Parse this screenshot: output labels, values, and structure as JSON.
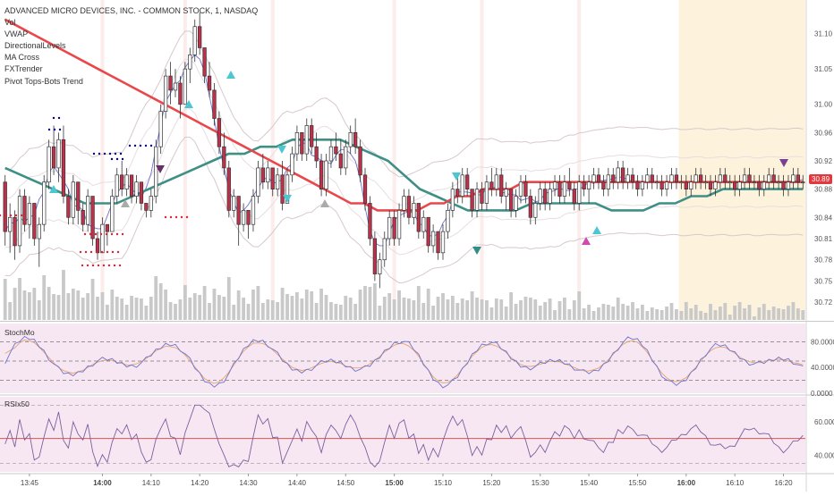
{
  "header": {
    "title": "ADVANCED MICRO DEVICES, INC. - COMMON STOCK, 1, NASDAQ",
    "indicators": [
      "Vol",
      "VWAP",
      "DirectionalLevels",
      "MA Cross",
      "FXTrender",
      "Pivot Tops-Bots Trend"
    ]
  },
  "colors": {
    "background": "#ffffff",
    "up_candle": "#ffffff",
    "down_candle": "#c0304a",
    "ma_slow": "#e9474b",
    "ma_fast": "#3e8f86",
    "vwap_band": "#d7c9cc",
    "vwap_inner": "#6f73cf",
    "highlight_zone": "#fdf2dc",
    "volume": "#c9c9c9",
    "stoch_k": "#6f73cf",
    "stoch_d": "#e7a46a",
    "rsi": "#7f5f9e",
    "rsi_mid": "#d9534f",
    "osc_bg": "#f6e7f2"
  },
  "chart_data": [
    {
      "type": "candlestick",
      "title": "ADVANCED MICRO DEVICES, INC. - COMMON STOCK, 1, NASDAQ",
      "ylim": [
        30.7,
        31.14
      ],
      "price_ticks": [
        "31.10",
        "31.05",
        "31.00",
        "30.96",
        "30.92",
        "30.88",
        "30.84",
        "30.81",
        "30.78",
        "30.75",
        "30.72"
      ],
      "price_tick_values": [
        31.1,
        31.05,
        31.0,
        30.96,
        30.92,
        30.88,
        30.84,
        30.81,
        30.78,
        30.75,
        30.72
      ],
      "last_price": "30.89",
      "time_labels": [
        "13:45",
        "14:00",
        "14:10",
        "14:20",
        "14:30",
        "14:40",
        "14:50",
        "15:00",
        "15:10",
        "15:20",
        "15:30",
        "15:40",
        "15:50",
        "16:00",
        "16:10",
        "16:20"
      ],
      "time_label_index": [
        5,
        20,
        30,
        40,
        50,
        60,
        70,
        80,
        90,
        100,
        110,
        120,
        130,
        140,
        150,
        160
      ],
      "bold_times": [
        "14:00",
        "15:00",
        "16:00"
      ],
      "candles": [
        [
          30.89,
          30.9,
          30.8,
          30.82
        ],
        [
          30.82,
          30.86,
          30.79,
          30.84
        ],
        [
          30.84,
          30.85,
          30.78,
          30.8
        ],
        [
          30.8,
          30.88,
          30.79,
          30.87
        ],
        [
          30.87,
          30.88,
          30.82,
          30.83
        ],
        [
          30.83,
          30.87,
          30.81,
          30.86
        ],
        [
          30.86,
          30.86,
          30.8,
          30.81
        ],
        [
          30.81,
          30.84,
          30.77,
          30.83
        ],
        [
          30.83,
          30.9,
          30.82,
          30.89
        ],
        [
          30.89,
          30.95,
          30.88,
          30.94
        ],
        [
          30.94,
          30.97,
          30.9,
          30.91
        ],
        [
          30.91,
          30.96,
          30.89,
          30.95
        ],
        [
          30.95,
          30.97,
          30.86,
          30.87
        ],
        [
          30.87,
          30.88,
          30.83,
          30.84
        ],
        [
          30.84,
          30.9,
          30.83,
          30.89
        ],
        [
          30.89,
          30.89,
          30.83,
          30.85
        ],
        [
          30.85,
          30.86,
          30.82,
          30.83
        ],
        [
          30.83,
          30.88,
          30.82,
          30.87
        ],
        [
          30.87,
          30.87,
          30.8,
          30.81
        ],
        [
          30.81,
          30.82,
          30.78,
          30.79
        ],
        [
          30.79,
          30.84,
          30.79,
          30.83
        ],
        [
          30.83,
          30.83,
          30.8,
          30.82
        ],
        [
          30.82,
          30.88,
          30.82,
          30.87
        ],
        [
          30.87,
          30.91,
          30.86,
          30.9
        ],
        [
          30.9,
          30.92,
          30.87,
          30.88
        ],
        [
          30.88,
          30.91,
          30.87,
          30.9
        ],
        [
          30.9,
          30.9,
          30.86,
          30.87
        ],
        [
          30.87,
          30.9,
          30.86,
          30.89
        ],
        [
          30.89,
          30.89,
          30.85,
          30.86
        ],
        [
          30.86,
          30.86,
          30.84,
          30.85
        ],
        [
          30.85,
          30.88,
          30.84,
          30.87
        ],
        [
          30.87,
          30.95,
          30.86,
          30.94
        ],
        [
          30.94,
          31.0,
          30.93,
          30.99
        ],
        [
          30.99,
          31.05,
          30.98,
          31.04
        ],
        [
          31.04,
          31.06,
          31.0,
          31.02
        ],
        [
          31.02,
          31.05,
          31.01,
          31.03
        ],
        [
          31.03,
          31.04,
          30.98,
          31.0
        ],
        [
          31.0,
          31.06,
          31.0,
          31.05
        ],
        [
          31.05,
          31.08,
          31.03,
          31.07
        ],
        [
          31.07,
          31.12,
          31.06,
          31.11
        ],
        [
          31.11,
          31.13,
          31.07,
          31.08
        ],
        [
          31.08,
          31.08,
          31.03,
          31.04
        ],
        [
          31.04,
          31.06,
          31.01,
          31.02
        ],
        [
          31.02,
          31.03,
          30.97,
          30.98
        ],
        [
          30.98,
          30.99,
          30.93,
          30.94
        ],
        [
          30.94,
          30.96,
          30.9,
          30.91
        ],
        [
          30.91,
          30.92,
          30.84,
          30.85
        ],
        [
          30.85,
          30.88,
          30.84,
          30.87
        ],
        [
          30.87,
          30.87,
          30.8,
          30.83
        ],
        [
          30.83,
          30.86,
          30.82,
          30.85
        ],
        [
          30.85,
          30.85,
          30.81,
          30.83
        ],
        [
          30.83,
          30.88,
          30.82,
          30.87
        ],
        [
          30.87,
          30.92,
          30.86,
          30.91
        ],
        [
          30.91,
          30.93,
          30.88,
          30.89
        ],
        [
          30.89,
          30.92,
          30.88,
          30.91
        ],
        [
          30.91,
          30.91,
          30.87,
          30.88
        ],
        [
          30.88,
          30.91,
          30.87,
          30.9
        ],
        [
          30.9,
          30.92,
          30.85,
          30.86
        ],
        [
          30.86,
          30.91,
          30.86,
          30.9
        ],
        [
          30.9,
          30.94,
          30.89,
          30.93
        ],
        [
          30.93,
          30.97,
          30.92,
          30.96
        ],
        [
          30.96,
          30.96,
          30.92,
          30.93
        ],
        [
          30.93,
          30.98,
          30.92,
          30.97
        ],
        [
          30.97,
          30.98,
          30.93,
          30.94
        ],
        [
          30.94,
          30.96,
          30.91,
          30.92
        ],
        [
          30.92,
          30.93,
          30.87,
          30.88
        ],
        [
          30.88,
          30.93,
          30.87,
          30.92
        ],
        [
          30.92,
          30.95,
          30.91,
          30.94
        ],
        [
          30.94,
          30.96,
          30.92,
          30.93
        ],
        [
          30.93,
          30.95,
          30.9,
          30.91
        ],
        [
          30.91,
          30.95,
          30.9,
          30.94
        ],
        [
          30.94,
          30.97,
          30.93,
          30.96
        ],
        [
          30.96,
          30.98,
          30.93,
          30.94
        ],
        [
          30.94,
          30.95,
          30.89,
          30.9
        ],
        [
          30.9,
          30.91,
          30.85,
          30.86
        ],
        [
          30.86,
          30.87,
          30.8,
          30.81
        ],
        [
          30.81,
          30.82,
          30.75,
          30.76
        ],
        [
          30.76,
          30.79,
          30.74,
          30.78
        ],
        [
          30.78,
          30.82,
          30.77,
          30.81
        ],
        [
          30.81,
          30.85,
          30.8,
          30.84
        ],
        [
          30.84,
          30.85,
          30.8,
          30.81
        ],
        [
          30.81,
          30.86,
          30.8,
          30.85
        ],
        [
          30.85,
          30.88,
          30.84,
          30.87
        ],
        [
          30.87,
          30.88,
          30.83,
          30.84
        ],
        [
          30.84,
          30.87,
          30.83,
          30.86
        ],
        [
          30.86,
          30.86,
          30.81,
          30.82
        ],
        [
          30.82,
          30.85,
          30.81,
          30.84
        ],
        [
          30.84,
          30.84,
          30.79,
          30.8
        ],
        [
          30.8,
          30.83,
          30.79,
          30.82
        ],
        [
          30.82,
          30.82,
          30.78,
          30.79
        ],
        [
          30.79,
          30.83,
          30.78,
          30.82
        ],
        [
          30.82,
          30.86,
          30.81,
          30.85
        ],
        [
          30.85,
          30.89,
          30.84,
          30.88
        ],
        [
          30.88,
          30.9,
          30.86,
          30.87
        ],
        [
          30.87,
          30.91,
          30.86,
          30.9
        ],
        [
          30.9,
          30.91,
          30.87,
          30.88
        ],
        [
          30.88,
          30.88,
          30.84,
          30.85
        ],
        [
          30.85,
          30.89,
          30.84,
          30.88
        ],
        [
          30.88,
          30.89,
          30.85,
          30.86
        ],
        [
          30.86,
          30.9,
          30.85,
          30.89
        ],
        [
          30.89,
          30.91,
          30.87,
          30.88
        ],
        [
          30.88,
          30.91,
          30.87,
          30.9
        ],
        [
          30.9,
          30.91,
          30.86,
          30.87
        ],
        [
          30.87,
          30.89,
          30.85,
          30.88
        ],
        [
          30.88,
          30.88,
          30.84,
          30.85
        ],
        [
          30.85,
          30.88,
          30.84,
          30.87
        ],
        [
          30.87,
          30.9,
          30.86,
          30.89
        ],
        [
          30.89,
          30.9,
          30.86,
          30.87
        ],
        [
          30.87,
          30.88,
          30.83,
          30.84
        ],
        [
          30.84,
          30.87,
          30.83,
          30.86
        ],
        [
          30.86,
          30.89,
          30.85,
          30.88
        ],
        [
          30.88,
          30.89,
          30.85,
          30.86
        ],
        [
          30.86,
          30.89,
          30.85,
          30.88
        ],
        [
          30.88,
          30.9,
          30.87,
          30.89
        ],
        [
          30.89,
          30.9,
          30.86,
          30.87
        ],
        [
          30.87,
          30.9,
          30.86,
          30.89
        ],
        [
          30.89,
          30.91,
          30.87,
          30.88
        ],
        [
          30.88,
          30.89,
          30.85,
          30.86
        ],
        [
          30.86,
          30.9,
          30.85,
          30.89
        ],
        [
          30.89,
          30.9,
          30.87,
          30.88
        ],
        [
          30.88,
          30.9,
          30.86,
          30.89
        ],
        [
          30.89,
          30.91,
          30.88,
          30.9
        ],
        [
          30.9,
          30.91,
          30.88,
          30.89
        ],
        [
          30.89,
          30.9,
          30.87,
          30.88
        ],
        [
          30.88,
          30.91,
          30.87,
          30.9
        ],
        [
          30.9,
          30.91,
          30.88,
          30.89
        ],
        [
          30.89,
          30.92,
          30.88,
          30.91
        ],
        [
          30.91,
          30.92,
          30.88,
          30.89
        ],
        [
          30.89,
          30.91,
          30.88,
          30.9
        ],
        [
          30.9,
          30.91,
          30.88,
          30.89
        ],
        [
          30.89,
          30.9,
          30.87,
          30.88
        ],
        [
          30.88,
          30.9,
          30.87,
          30.89
        ],
        [
          30.89,
          30.91,
          30.88,
          30.9
        ],
        [
          30.9,
          30.91,
          30.88,
          30.89
        ],
        [
          30.89,
          30.9,
          30.88,
          30.89
        ],
        [
          30.89,
          30.9,
          30.87,
          30.88
        ],
        [
          30.88,
          30.9,
          30.87,
          30.89
        ],
        [
          30.89,
          30.91,
          30.88,
          30.9
        ],
        [
          30.9,
          30.91,
          30.88,
          30.89
        ],
        [
          30.89,
          30.9,
          30.88,
          30.89
        ],
        [
          30.89,
          30.9,
          30.87,
          30.88
        ],
        [
          30.88,
          30.9,
          30.87,
          30.89
        ],
        [
          30.89,
          30.91,
          30.88,
          30.9
        ],
        [
          30.9,
          30.91,
          30.88,
          30.89
        ],
        [
          30.89,
          30.9,
          30.88,
          30.89
        ],
        [
          30.89,
          30.9,
          30.87,
          30.88
        ],
        [
          30.88,
          30.9,
          30.87,
          30.89
        ],
        [
          30.89,
          30.91,
          30.88,
          30.9
        ],
        [
          30.9,
          30.91,
          30.88,
          30.89
        ],
        [
          30.89,
          30.9,
          30.88,
          30.89
        ],
        [
          30.89,
          30.9,
          30.87,
          30.88
        ],
        [
          30.88,
          30.9,
          30.87,
          30.89
        ],
        [
          30.89,
          30.91,
          30.88,
          30.9
        ],
        [
          30.9,
          30.91,
          30.88,
          30.89
        ],
        [
          30.89,
          30.9,
          30.88,
          30.89
        ],
        [
          30.89,
          30.9,
          30.87,
          30.88
        ],
        [
          30.88,
          30.9,
          30.87,
          30.89
        ],
        [
          30.89,
          30.91,
          30.88,
          30.9
        ],
        [
          30.9,
          30.91,
          30.88,
          30.89
        ],
        [
          30.89,
          30.9,
          30.88,
          30.89
        ],
        [
          30.89,
          30.9,
          30.87,
          30.88
        ],
        [
          30.88,
          30.9,
          30.87,
          30.89
        ],
        [
          30.89,
          30.91,
          30.88,
          30.9
        ],
        [
          30.9,
          30.91,
          30.88,
          30.89
        ],
        [
          30.89,
          30.9,
          30.88,
          30.89
        ]
      ],
      "ma_slow": [
        31.12,
        31.11,
        31.1,
        31.09,
        31.08,
        31.07,
        31.06,
        31.05,
        31.04,
        31.03,
        31.02,
        31.01,
        31.0,
        30.99,
        30.98,
        30.97,
        30.96,
        30.95,
        30.94,
        30.93,
        30.92,
        30.91,
        30.9,
        30.89,
        30.88,
        30.87,
        30.86,
        30.86,
        30.85,
        30.85,
        30.85,
        30.85,
        30.86,
        30.86,
        30.87,
        30.87,
        30.88,
        30.88,
        30.88,
        30.89,
        30.89,
        30.89,
        30.89,
        30.89,
        30.89,
        30.89,
        30.89,
        30.89,
        30.89,
        30.89,
        30.89,
        30.89,
        30.89,
        30.89,
        30.89,
        30.89,
        30.89,
        30.89,
        30.89,
        30.89,
        30.89
      ],
      "ma_fast": [
        30.91,
        30.9,
        30.89,
        30.88,
        30.87,
        30.86,
        30.86,
        30.86,
        30.87,
        30.88,
        30.89,
        30.9,
        30.91,
        30.92,
        30.93,
        30.93,
        30.94,
        30.94,
        30.95,
        30.95,
        30.95,
        30.95,
        30.94,
        30.93,
        30.92,
        30.9,
        30.88,
        30.87,
        30.86,
        30.85,
        30.85,
        30.85,
        30.85,
        30.86,
        30.86,
        30.86,
        30.86,
        30.86,
        30.85,
        30.85,
        30.85,
        30.86,
        30.86,
        30.87,
        30.87,
        30.88,
        30.88,
        30.88,
        30.88,
        30.88,
        30.88
      ],
      "stoch_ticks": [
        "80.0000",
        "40.0000",
        "0.0000"
      ],
      "stoch_tick_values": [
        80,
        40,
        0
      ],
      "stoch_levels": [
        80,
        50,
        20
      ],
      "rsi_ticks": [
        "60.0000",
        "40.0000"
      ],
      "rsi_tick_values": [
        60,
        40
      ],
      "rsi_mid": 50
    }
  ],
  "panes": {
    "stoch_label": "StochMo",
    "rsi_label": "RSIx50"
  }
}
